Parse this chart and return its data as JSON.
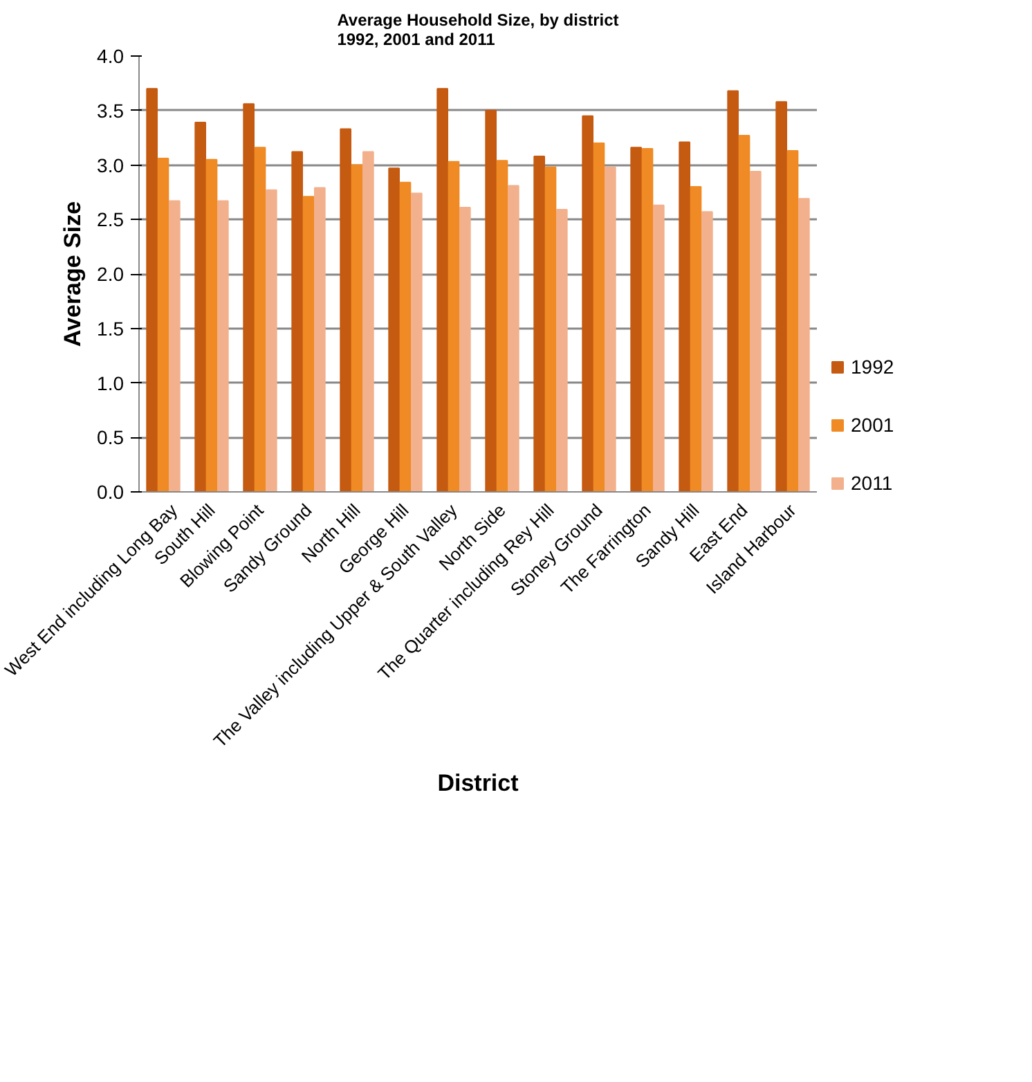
{
  "chart_data": {
    "type": "bar",
    "title": "Average Household Size, by district\n1992, 2001 and 2011",
    "xlabel": "District",
    "ylabel": "Average Size",
    "categories": [
      "West End including Long Bay",
      "South Hill",
      "Blowing Point",
      "Sandy Ground",
      "North Hill",
      "George Hill",
      "The Valley including Upper & South Valley",
      "North Side",
      "The Quarter including Rey Hill",
      "Stoney Ground",
      "The Farrington",
      "Sandy Hill",
      "East End",
      "Island Harbour"
    ],
    "series": [
      {
        "name": "1992",
        "color": "#c55a11",
        "values": [
          3.7,
          3.39,
          3.56,
          3.12,
          3.33,
          2.97,
          3.7,
          3.5,
          3.08,
          3.45,
          3.16,
          3.21,
          3.68,
          3.58
        ]
      },
      {
        "name": "2001",
        "color": "#f08a24",
        "values": [
          3.06,
          3.05,
          3.16,
          2.71,
          3.0,
          2.84,
          3.03,
          3.04,
          2.98,
          3.2,
          3.15,
          2.8,
          3.27,
          3.13
        ]
      },
      {
        "name": "2011",
        "color": "#f2b08c",
        "values": [
          2.67,
          2.67,
          2.77,
          2.79,
          3.12,
          2.74,
          2.61,
          2.81,
          2.59,
          2.98,
          2.63,
          2.57,
          2.94,
          2.69
        ]
      }
    ],
    "ylim": [
      0,
      4
    ],
    "yticks": [
      {
        "value": 0,
        "label": "0.0"
      },
      {
        "value": 0.5,
        "label": "0.5"
      },
      {
        "value": 1,
        "label": "1.0"
      },
      {
        "value": 1.5,
        "label": "1.5"
      },
      {
        "value": 2,
        "label": "2.0"
      },
      {
        "value": 2.5,
        "label": "2.5"
      },
      {
        "value": 3,
        "label": "3.0"
      },
      {
        "value": 3.5,
        "label": "3.5"
      },
      {
        "value": 4,
        "label": "4.0"
      }
    ],
    "grid": "y",
    "legend": "bottom right"
  }
}
